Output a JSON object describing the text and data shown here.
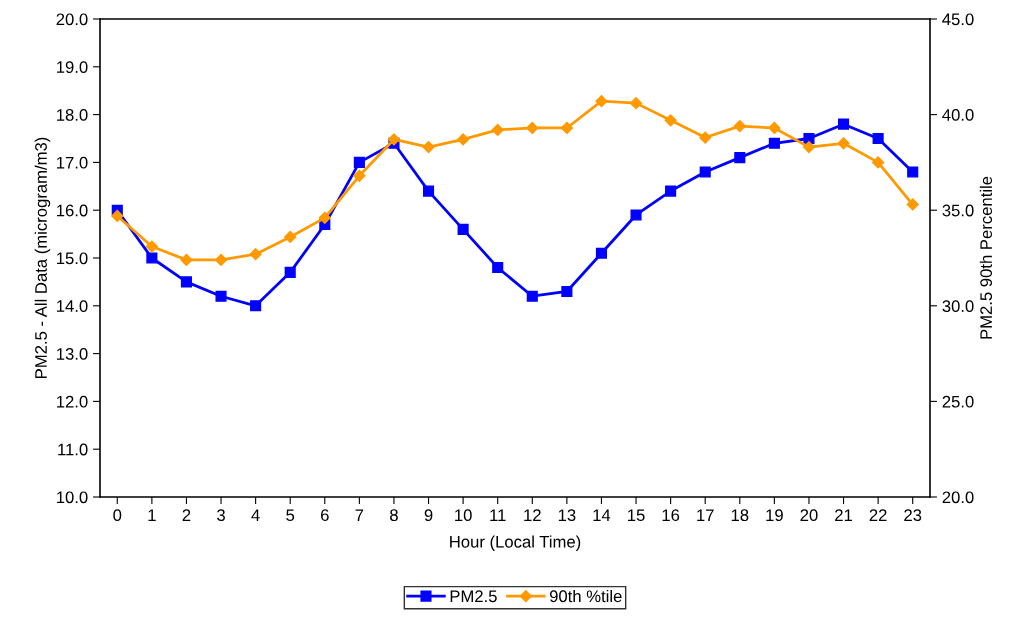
{
  "chart_data": {
    "type": "line",
    "xlabel": "Hour (Local Time)",
    "ylabel": "PM2.5 - All Data (microgram/m3)",
    "y2label": "PM2.5 90th Percentile",
    "categories": [
      "0",
      "1",
      "2",
      "3",
      "4",
      "5",
      "6",
      "7",
      "8",
      "9",
      "10",
      "11",
      "12",
      "13",
      "14",
      "15",
      "16",
      "17",
      "18",
      "19",
      "20",
      "21",
      "22",
      "23"
    ],
    "series": [
      {
        "name": "PM2.5",
        "color": "#0000ff",
        "marker": "square",
        "values": [
          16.0,
          15.0,
          14.5,
          14.2,
          14.0,
          14.7,
          15.7,
          17.0,
          17.4,
          16.4,
          15.6,
          14.8,
          14.2,
          14.3,
          15.1,
          15.9,
          16.4,
          16.8,
          17.1,
          17.4,
          17.5,
          17.8,
          17.5,
          16.8
        ]
      },
      {
        "name": "90th %tile",
        "color": "#ff9900",
        "marker": "diamond",
        "axis": "y2",
        "values": [
          34.7,
          33.1,
          32.4,
          32.4,
          32.7,
          33.6,
          34.6,
          36.8,
          38.7,
          38.3,
          38.7,
          39.2,
          39.3,
          39.3,
          40.7,
          40.6,
          39.7,
          38.8,
          39.4,
          39.3,
          38.3,
          38.5,
          37.5,
          35.3
        ]
      }
    ],
    "ylim": [
      10,
      20
    ],
    "yticks": [
      {
        "value": 10,
        "label": "10.0"
      },
      {
        "value": 11,
        "label": "11.0"
      },
      {
        "value": 12,
        "label": "12.0"
      },
      {
        "value": 13,
        "label": "13.0"
      },
      {
        "value": 14,
        "label": "14.0"
      },
      {
        "value": 15,
        "label": "15.0"
      },
      {
        "value": 16,
        "label": "16.0"
      },
      {
        "value": 17,
        "label": "17.0"
      },
      {
        "value": 18,
        "label": "18.0"
      },
      {
        "value": 19,
        "label": "19.0"
      },
      {
        "value": 20,
        "label": "20.0"
      }
    ],
    "y2lim": [
      20,
      45
    ],
    "y2ticks": [
      {
        "value": 20,
        "label": "20.0"
      },
      {
        "value": 25,
        "label": "25.0"
      },
      {
        "value": 30,
        "label": "30.0"
      },
      {
        "value": 35,
        "label": "35.0"
      },
      {
        "value": 40,
        "label": "40.0"
      },
      {
        "value": 45,
        "label": "45.0"
      }
    ],
    "grid": false,
    "legend": "bottom",
    "line_style": "solid"
  }
}
